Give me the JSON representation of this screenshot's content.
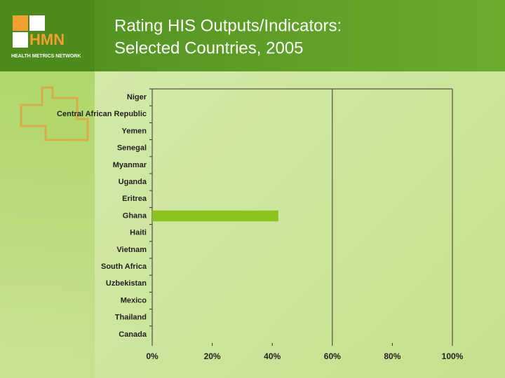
{
  "logo": {
    "acronym": "HMN",
    "name": "HEALTH METRICS NETWORK"
  },
  "chart_data": {
    "type": "hbar",
    "title_lines": [
      "Rating HIS Outputs/Indicators:",
      "Selected Countries, 2005"
    ],
    "categories": [
      "Niger",
      "Central African Republic",
      "Yemen",
      "Senegal",
      "Myanmar",
      "Uganda",
      "Eritrea",
      "Ghana",
      "Haiti",
      "Vietnam",
      "South Africa",
      "Uzbekistan",
      "Mexico",
      "Thailand",
      "Canada"
    ],
    "values": [
      0,
      0,
      0,
      0,
      0,
      0,
      0,
      42,
      0,
      0,
      0,
      0,
      0,
      0,
      0
    ],
    "color": "#8cc21e",
    "xlim": [
      0,
      100
    ],
    "xticks": [
      {
        "value": 0,
        "label": "0%"
      },
      {
        "value": 20,
        "label": "20%"
      },
      {
        "value": 40,
        "label": "40%"
      },
      {
        "value": 60,
        "label": "60%"
      },
      {
        "value": 80,
        "label": "80%"
      },
      {
        "value": 100,
        "label": "100%"
      }
    ],
    "xgrid": [
      60
    ]
  }
}
